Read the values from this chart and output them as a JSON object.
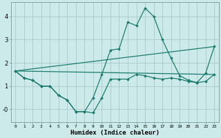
{
  "xlabel": "Humidex (Indice chaleur)",
  "bg_color": "#cceaea",
  "line_color": "#1a7a6e",
  "grid_color": "#aac8c8",
  "xlim": [
    -0.5,
    23.5
  ],
  "ylim": [
    -0.55,
    4.6
  ],
  "xticks": [
    0,
    1,
    2,
    3,
    4,
    5,
    6,
    7,
    8,
    9,
    10,
    11,
    12,
    13,
    14,
    15,
    16,
    17,
    18,
    19,
    20,
    21,
    22,
    23
  ],
  "yticks": [
    0,
    1,
    2,
    3,
    4
  ],
  "ytick_labels": [
    "-0",
    "1",
    "2",
    "3",
    "4"
  ],
  "curve1_x": [
    0,
    1,
    2,
    3,
    4,
    5,
    6,
    7,
    8,
    9,
    10,
    11,
    12,
    13,
    14,
    15,
    16,
    17,
    18,
    19,
    20,
    21,
    22,
    23
  ],
  "curve1_y": [
    1.65,
    1.35,
    1.25,
    1.0,
    1.0,
    0.6,
    0.4,
    -0.1,
    -0.1,
    -0.15,
    0.5,
    1.3,
    1.3,
    1.3,
    1.5,
    1.45,
    1.35,
    1.3,
    1.35,
    1.3,
    1.2,
    1.15,
    1.2,
    1.5
  ],
  "curve2_x": [
    0,
    1,
    2,
    3,
    4,
    5,
    6,
    7,
    8,
    9,
    10,
    11,
    12,
    13,
    14,
    15,
    16,
    17,
    18,
    19,
    20,
    21,
    22,
    23
  ],
  "curve2_y": [
    1.65,
    1.35,
    1.25,
    1.0,
    1.0,
    0.6,
    0.4,
    -0.1,
    -0.1,
    0.5,
    1.5,
    2.55,
    2.6,
    3.75,
    3.6,
    4.35,
    4.0,
    3.0,
    2.2,
    1.45,
    1.25,
    1.15,
    1.55,
    2.7
  ],
  "trend1_x": [
    0,
    23
  ],
  "trend1_y": [
    1.65,
    1.5
  ],
  "trend2_x": [
    0,
    23
  ],
  "trend2_y": [
    1.65,
    2.7
  ]
}
